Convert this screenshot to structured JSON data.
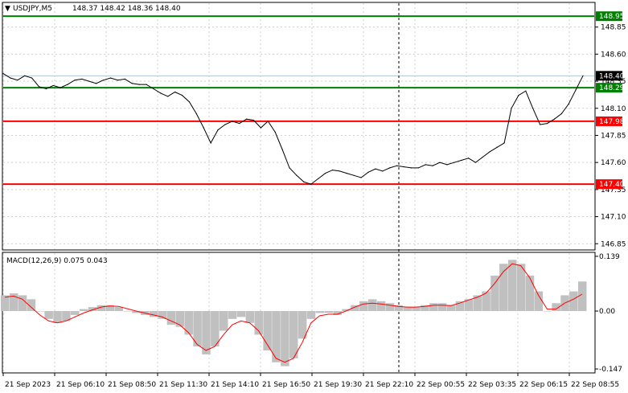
{
  "header": {
    "symbol": "USDJPY,M5",
    "ohlc": "148.37 148.42 148.36 148.40"
  },
  "macd": {
    "label": "MACD(12,26,9) 0.075 0.043"
  },
  "colors": {
    "price_line": "#000000",
    "grid": "#c8c8c8",
    "support_resistance_green": "#008000",
    "support_resistance_red": "#ff0000",
    "macd_hist": "#c0c0c0",
    "macd_signal": "#ff0000",
    "current_price_tag": "#000000"
  },
  "chart_data": [
    {
      "type": "line",
      "name": "price",
      "ylim": [
        146.8,
        149.07
      ],
      "y_ticks": [
        "148.85",
        "148.60",
        "148.35",
        "148.10",
        "147.85",
        "147.60",
        "147.35",
        "147.10",
        "146.85"
      ],
      "y_tick_values": [
        148.85,
        148.6,
        148.35,
        148.1,
        147.85,
        147.6,
        147.35,
        147.1,
        146.85
      ],
      "levels": [
        {
          "value": 148.95,
          "label": "148.95",
          "color": "green"
        },
        {
          "value": 148.29,
          "label": "148.29",
          "color": "green"
        },
        {
          "value": 147.98,
          "label": "147.98",
          "color": "red"
        },
        {
          "value": 147.4,
          "label": "147.40",
          "color": "red"
        }
      ],
      "current": {
        "value": 148.4,
        "label": "148.40"
      },
      "x_labels": [
        "21 Sep 2023",
        "21 Sep 06:10",
        "21 Sep 08:50",
        "21 Sep 11:30",
        "21 Sep 14:10",
        "21 Sep 16:50",
        "21 Sep 19:30",
        "21 Sep 22:10",
        "22 Sep 00:55",
        "22 Sep 03:35",
        "22 Sep 06:15",
        "22 Sep 08:55"
      ],
      "values": [
        148.42,
        148.38,
        148.36,
        148.4,
        148.38,
        148.3,
        148.28,
        148.31,
        148.29,
        148.32,
        148.36,
        148.37,
        148.35,
        148.33,
        148.36,
        148.38,
        148.36,
        148.37,
        148.33,
        148.32,
        148.32,
        148.28,
        148.24,
        148.21,
        148.25,
        148.22,
        148.16,
        148.05,
        147.92,
        147.78,
        147.9,
        147.95,
        147.98,
        147.96,
        148.0,
        147.99,
        147.92,
        147.98,
        147.88,
        147.72,
        147.55,
        147.48,
        147.42,
        147.4,
        147.45,
        147.5,
        147.53,
        147.52,
        147.5,
        147.48,
        147.46,
        147.51,
        147.54,
        147.52,
        147.55,
        147.57,
        147.56,
        147.55,
        147.55,
        147.58,
        147.57,
        147.6,
        147.58,
        147.6,
        147.62,
        147.64,
        147.6,
        147.65,
        147.7,
        147.74,
        147.78,
        148.1,
        148.22,
        148.26,
        148.1,
        147.95,
        147.96,
        148.0,
        148.05,
        148.14,
        148.27,
        148.4
      ],
      "y_unit_note": ""
    },
    {
      "type": "bar",
      "name": "macd",
      "ylim": [
        -0.155,
        0.147
      ],
      "y_ticks": [
        "0.139",
        "0.00",
        "-0.147"
      ],
      "y_tick_values": [
        0.139,
        0.0,
        -0.147
      ],
      "histogram": [
        0.04,
        0.045,
        0.04,
        0.03,
        0.0,
        -0.02,
        -0.03,
        -0.025,
        -0.01,
        0.005,
        0.01,
        0.015,
        0.015,
        0.01,
        0.0,
        -0.005,
        -0.01,
        -0.015,
        -0.02,
        -0.035,
        -0.04,
        -0.06,
        -0.09,
        -0.11,
        -0.09,
        -0.05,
        -0.02,
        -0.015,
        -0.03,
        -0.06,
        -0.1,
        -0.13,
        -0.14,
        -0.12,
        -0.07,
        -0.02,
        -0.005,
        -0.005,
        -0.01,
        0.005,
        0.015,
        0.025,
        0.03,
        0.025,
        0.02,
        0.015,
        0.01,
        0.01,
        0.015,
        0.02,
        0.02,
        0.015,
        0.025,
        0.03,
        0.04,
        0.05,
        0.09,
        0.12,
        0.13,
        0.12,
        0.09,
        0.05,
        0.0,
        0.02,
        0.04,
        0.05,
        0.075
      ],
      "signal": [
        0.035,
        0.038,
        0.03,
        0.01,
        -0.01,
        -0.025,
        -0.03,
        -0.025,
        -0.015,
        -0.005,
        0.003,
        0.01,
        0.013,
        0.012,
        0.006,
        0.0,
        -0.005,
        -0.01,
        -0.015,
        -0.025,
        -0.035,
        -0.055,
        -0.085,
        -0.1,
        -0.09,
        -0.06,
        -0.035,
        -0.025,
        -0.03,
        -0.05,
        -0.085,
        -0.12,
        -0.13,
        -0.12,
        -0.08,
        -0.03,
        -0.012,
        -0.008,
        -0.008,
        0.0,
        0.01,
        0.018,
        0.02,
        0.018,
        0.015,
        0.012,
        0.01,
        0.01,
        0.012,
        0.015,
        0.015,
        0.014,
        0.02,
        0.028,
        0.035,
        0.045,
        0.07,
        0.1,
        0.12,
        0.115,
        0.085,
        0.04,
        0.005,
        0.005,
        0.02,
        0.03,
        0.043
      ]
    }
  ]
}
